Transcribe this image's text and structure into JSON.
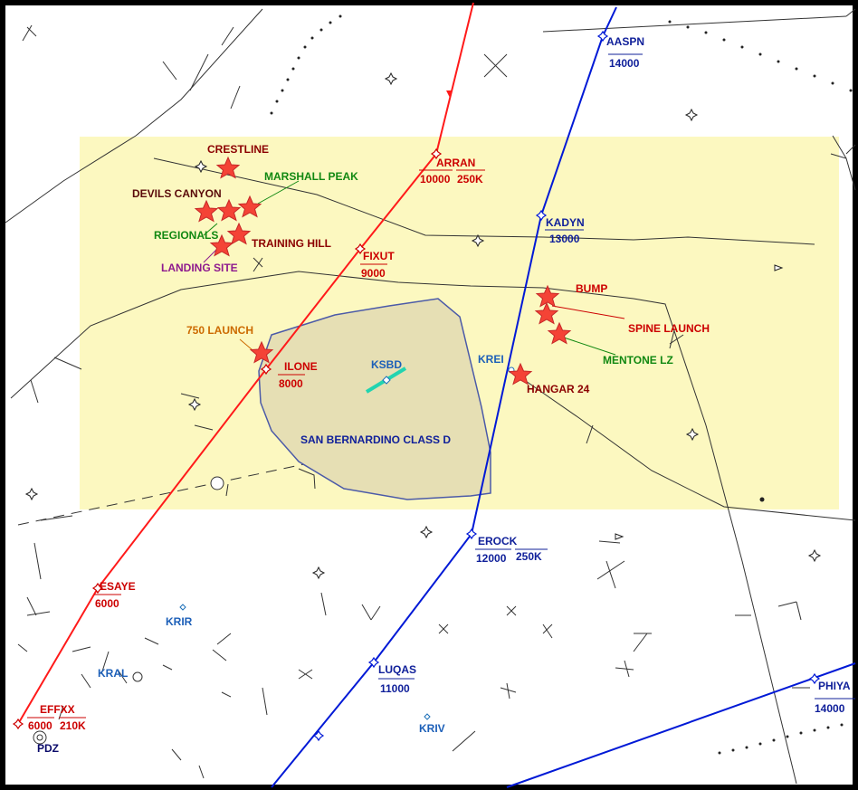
{
  "colors": {
    "frame": "#000000",
    "zone_fill": "#fcf8c0",
    "class_d_fill": "#e6dfb4",
    "class_d_stroke": "#4b5aa8",
    "red_route": "#ff1a1a",
    "blue_route": "#0019d6",
    "runway": "#22d4b0",
    "star": "#f44336",
    "red_text": "#cc0000",
    "blue_text": "#10209a",
    "green_text": "#118811",
    "purple_text": "#8e1a8e",
    "orange_text": "#cc6a00",
    "darkred_text": "#8b0000"
  },
  "airspace": {
    "class_d_label": "SAN BERNARDINO CLASS D",
    "airport": "KSBD"
  },
  "fixes_red": [
    {
      "name": "ARRAN",
      "alt": "10000",
      "speed": "250K"
    },
    {
      "name": "FIXUT",
      "alt": "9000"
    },
    {
      "name": "ILONE",
      "alt": "8000"
    },
    {
      "name": "ESAYE",
      "alt": "6000"
    },
    {
      "name": "EFFXX",
      "alt": "6000",
      "speed": "210K"
    }
  ],
  "fixes_blue": [
    {
      "name": "AASPN",
      "alt": "14000"
    },
    {
      "name": "KADYN",
      "alt": "13000"
    },
    {
      "name": "EROCK",
      "alt": "12000",
      "speed": "250K"
    },
    {
      "name": "LUQAS",
      "alt": "11000"
    },
    {
      "name": "PHIYA",
      "alt": "14000"
    }
  ],
  "airports": [
    "KREI",
    "KRIR",
    "KRAL",
    "KRIV",
    "PDZ"
  ],
  "sites": [
    {
      "name": "CRESTLINE",
      "color": "darkred"
    },
    {
      "name": "MARSHALL PEAK",
      "color": "green"
    },
    {
      "name": "DEVILS CANYON",
      "color": "darkred"
    },
    {
      "name": "REGIONALS",
      "color": "green"
    },
    {
      "name": "TRAINING HILL",
      "color": "darkred"
    },
    {
      "name": "LANDING SITE",
      "color": "purple"
    },
    {
      "name": "750 LAUNCH",
      "color": "orange"
    },
    {
      "name": "BUMP",
      "color": "darkred"
    },
    {
      "name": "SPINE LAUNCH",
      "color": "darkred"
    },
    {
      "name": "MENTONE LZ",
      "color": "green"
    },
    {
      "name": "HANGAR 24",
      "color": "darkred"
    }
  ]
}
